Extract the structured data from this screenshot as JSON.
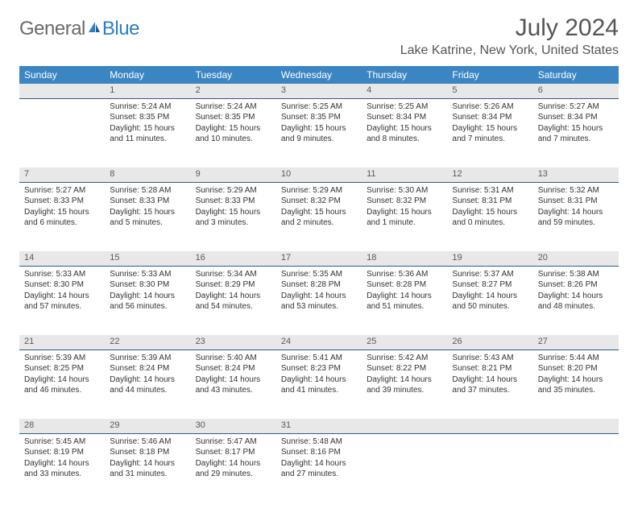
{
  "logo": {
    "general": "General",
    "blue": "Blue"
  },
  "title": "July 2024",
  "location": "Lake Katrine, New York, United States",
  "colors": {
    "header_bg": "#3b85c3",
    "header_text": "#ffffff",
    "daynum_bg": "#e8e8e8",
    "daynum_border": "#2e5e88",
    "body_text": "#333333",
    "logo_gray": "#6a6a6a",
    "logo_blue": "#2a7ec5",
    "title_color": "#555555"
  },
  "fonts": {
    "title_size": 30,
    "location_size": 16,
    "weekday_size": 12,
    "daynum_size": 11,
    "cell_size": 10
  },
  "weekdays": [
    "Sunday",
    "Monday",
    "Tuesday",
    "Wednesday",
    "Thursday",
    "Friday",
    "Saturday"
  ],
  "weeks": [
    [
      null,
      {
        "n": "1",
        "sr": "5:24 AM",
        "ss": "8:35 PM",
        "dl": "15 hours and 11 minutes."
      },
      {
        "n": "2",
        "sr": "5:24 AM",
        "ss": "8:35 PM",
        "dl": "15 hours and 10 minutes."
      },
      {
        "n": "3",
        "sr": "5:25 AM",
        "ss": "8:35 PM",
        "dl": "15 hours and 9 minutes."
      },
      {
        "n": "4",
        "sr": "5:25 AM",
        "ss": "8:34 PM",
        "dl": "15 hours and 8 minutes."
      },
      {
        "n": "5",
        "sr": "5:26 AM",
        "ss": "8:34 PM",
        "dl": "15 hours and 7 minutes."
      },
      {
        "n": "6",
        "sr": "5:27 AM",
        "ss": "8:34 PM",
        "dl": "15 hours and 7 minutes."
      }
    ],
    [
      {
        "n": "7",
        "sr": "5:27 AM",
        "ss": "8:33 PM",
        "dl": "15 hours and 6 minutes."
      },
      {
        "n": "8",
        "sr": "5:28 AM",
        "ss": "8:33 PM",
        "dl": "15 hours and 5 minutes."
      },
      {
        "n": "9",
        "sr": "5:29 AM",
        "ss": "8:33 PM",
        "dl": "15 hours and 3 minutes."
      },
      {
        "n": "10",
        "sr": "5:29 AM",
        "ss": "8:32 PM",
        "dl": "15 hours and 2 minutes."
      },
      {
        "n": "11",
        "sr": "5:30 AM",
        "ss": "8:32 PM",
        "dl": "15 hours and 1 minute."
      },
      {
        "n": "12",
        "sr": "5:31 AM",
        "ss": "8:31 PM",
        "dl": "15 hours and 0 minutes."
      },
      {
        "n": "13",
        "sr": "5:32 AM",
        "ss": "8:31 PM",
        "dl": "14 hours and 59 minutes."
      }
    ],
    [
      {
        "n": "14",
        "sr": "5:33 AM",
        "ss": "8:30 PM",
        "dl": "14 hours and 57 minutes."
      },
      {
        "n": "15",
        "sr": "5:33 AM",
        "ss": "8:30 PM",
        "dl": "14 hours and 56 minutes."
      },
      {
        "n": "16",
        "sr": "5:34 AM",
        "ss": "8:29 PM",
        "dl": "14 hours and 54 minutes."
      },
      {
        "n": "17",
        "sr": "5:35 AM",
        "ss": "8:28 PM",
        "dl": "14 hours and 53 minutes."
      },
      {
        "n": "18",
        "sr": "5:36 AM",
        "ss": "8:28 PM",
        "dl": "14 hours and 51 minutes."
      },
      {
        "n": "19",
        "sr": "5:37 AM",
        "ss": "8:27 PM",
        "dl": "14 hours and 50 minutes."
      },
      {
        "n": "20",
        "sr": "5:38 AM",
        "ss": "8:26 PM",
        "dl": "14 hours and 48 minutes."
      }
    ],
    [
      {
        "n": "21",
        "sr": "5:39 AM",
        "ss": "8:25 PM",
        "dl": "14 hours and 46 minutes."
      },
      {
        "n": "22",
        "sr": "5:39 AM",
        "ss": "8:24 PM",
        "dl": "14 hours and 44 minutes."
      },
      {
        "n": "23",
        "sr": "5:40 AM",
        "ss": "8:24 PM",
        "dl": "14 hours and 43 minutes."
      },
      {
        "n": "24",
        "sr": "5:41 AM",
        "ss": "8:23 PM",
        "dl": "14 hours and 41 minutes."
      },
      {
        "n": "25",
        "sr": "5:42 AM",
        "ss": "8:22 PM",
        "dl": "14 hours and 39 minutes."
      },
      {
        "n": "26",
        "sr": "5:43 AM",
        "ss": "8:21 PM",
        "dl": "14 hours and 37 minutes."
      },
      {
        "n": "27",
        "sr": "5:44 AM",
        "ss": "8:20 PM",
        "dl": "14 hours and 35 minutes."
      }
    ],
    [
      {
        "n": "28",
        "sr": "5:45 AM",
        "ss": "8:19 PM",
        "dl": "14 hours and 33 minutes."
      },
      {
        "n": "29",
        "sr": "5:46 AM",
        "ss": "8:18 PM",
        "dl": "14 hours and 31 minutes."
      },
      {
        "n": "30",
        "sr": "5:47 AM",
        "ss": "8:17 PM",
        "dl": "14 hours and 29 minutes."
      },
      {
        "n": "31",
        "sr": "5:48 AM",
        "ss": "8:16 PM",
        "dl": "14 hours and 27 minutes."
      },
      null,
      null,
      null
    ]
  ],
  "labels": {
    "sunrise": "Sunrise: ",
    "sunset": "Sunset: ",
    "daylight": "Daylight: "
  }
}
